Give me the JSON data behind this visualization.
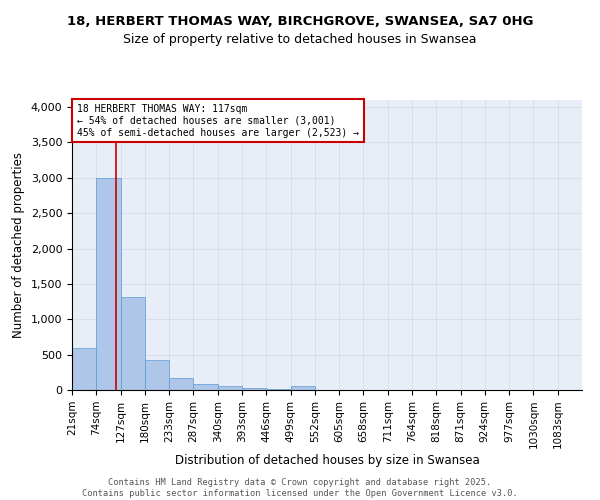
{
  "title_line1": "18, HERBERT THOMAS WAY, BIRCHGROVE, SWANSEA, SA7 0HG",
  "title_line2": "Size of property relative to detached houses in Swansea",
  "xlabel": "Distribution of detached houses by size in Swansea",
  "ylabel": "Number of detached properties",
  "bin_labels": [
    "21sqm",
    "74sqm",
    "127sqm",
    "180sqm",
    "233sqm",
    "287sqm",
    "340sqm",
    "393sqm",
    "446sqm",
    "499sqm",
    "552sqm",
    "605sqm",
    "658sqm",
    "711sqm",
    "764sqm",
    "818sqm",
    "871sqm",
    "924sqm",
    "977sqm",
    "1030sqm",
    "1083sqm"
  ],
  "bar_values": [
    600,
    3000,
    1320,
    430,
    170,
    90,
    55,
    35,
    10,
    55,
    0,
    0,
    0,
    0,
    0,
    0,
    0,
    0,
    0,
    0,
    0
  ],
  "bar_color": "#aec6e8",
  "bar_edge_color": "#5a9bd4",
  "ylim": [
    0,
    4100
  ],
  "yticks": [
    0,
    500,
    1000,
    1500,
    2000,
    2500,
    3000,
    3500,
    4000
  ],
  "property_size": 117,
  "vline_color": "#cc0000",
  "annotation_text": "18 HERBERT THOMAS WAY: 117sqm\n← 54% of detached houses are smaller (3,001)\n45% of semi-detached houses are larger (2,523) →",
  "annotation_box_color": "#cc0000",
  "annotation_text_color": "#000000",
  "grid_color": "#d0d8e8",
  "background_color": "#e8eef8",
  "footer_line1": "Contains HM Land Registry data © Crown copyright and database right 2025.",
  "footer_line2": "Contains public sector information licensed under the Open Government Licence v3.0.",
  "bin_width": 53
}
